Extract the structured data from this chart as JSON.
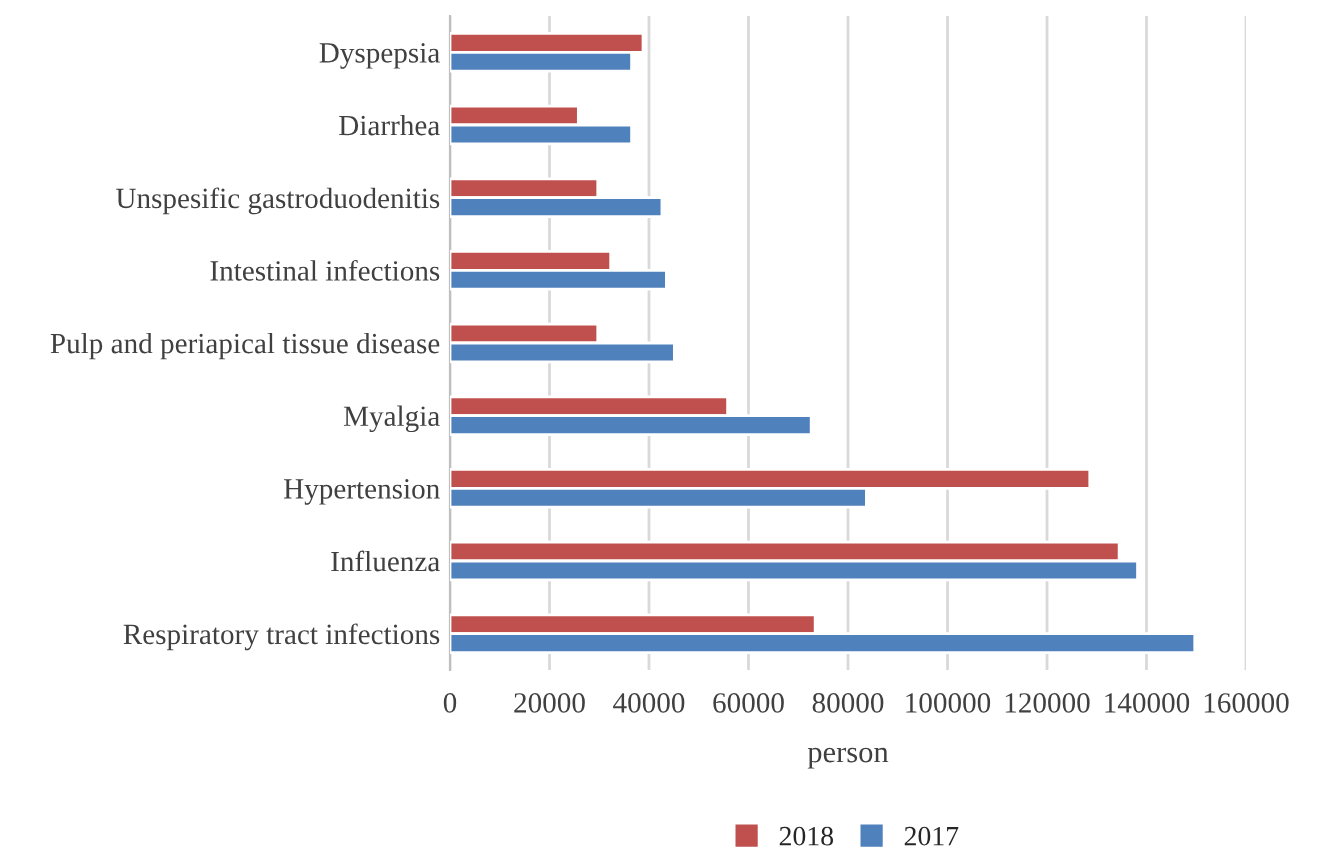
{
  "chart_data": {
    "type": "bar",
    "orientation": "horizontal",
    "xlabel": "person",
    "categories": [
      "Dyspepsia",
      "Diarrhea",
      "Unspesific gastroduodenitis",
      "Intestinal infections",
      "Pulp and periapical tissue disease",
      "Myalgia",
      "Hypertension",
      "Influenza",
      "Respiratory tract infections"
    ],
    "series": [
      {
        "name": "2018",
        "color": "#c0504d",
        "values": [
          38800,
          25800,
          29700,
          32300,
          29700,
          55800,
          128600,
          134500,
          73400
        ]
      },
      {
        "name": "2017",
        "color": "#4f81bd",
        "values": [
          36500,
          36500,
          42600,
          43500,
          45100,
          72600,
          83700,
          138200,
          149700
        ]
      }
    ],
    "xlim": [
      0,
      160000
    ],
    "xticks": [
      0,
      20000,
      40000,
      60000,
      80000,
      100000,
      120000,
      140000,
      160000
    ],
    "grid": "x",
    "legend": "bottom"
  }
}
